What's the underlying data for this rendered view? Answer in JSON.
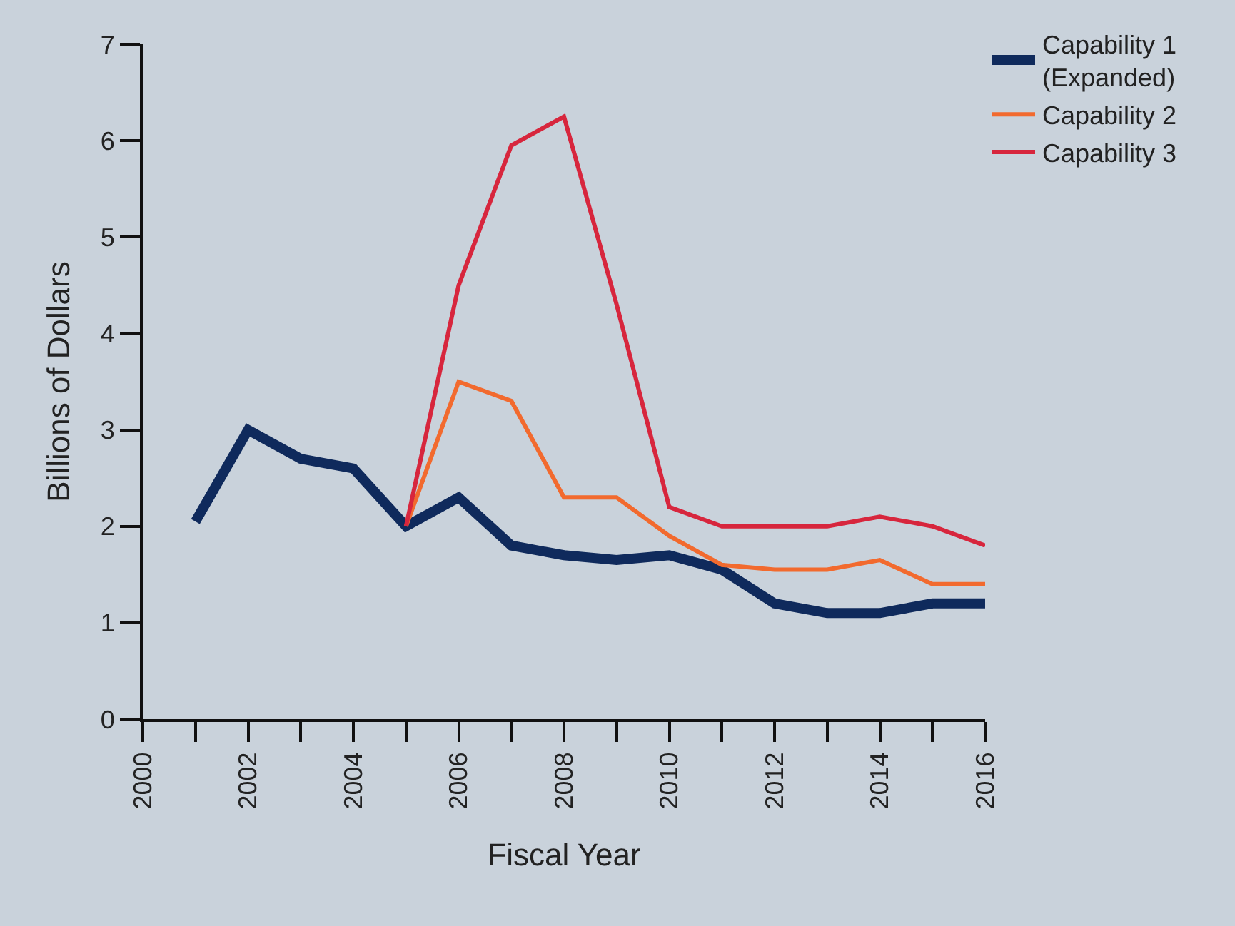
{
  "chart_data": {
    "type": "line",
    "xlabel": "Fiscal Year",
    "ylabel": "Billions of Dollars",
    "xlim": [
      2000,
      2016
    ],
    "ylim": [
      0,
      7
    ],
    "xticks": [
      2000,
      {
        "value": 2001,
        "label": null
      },
      2002,
      {
        "value": 2003,
        "label": null
      },
      2004,
      {
        "value": 2005,
        "label": null
      },
      2006,
      {
        "value": 2007,
        "label": null
      },
      2008,
      {
        "value": 2009,
        "label": null
      },
      2010,
      {
        "value": 2011,
        "label": null
      },
      2012,
      {
        "value": 2013,
        "label": null
      },
      2014,
      {
        "value": 2015,
        "label": null
      },
      2016
    ],
    "yticks": [
      0,
      1,
      2,
      3,
      4,
      5,
      6,
      7
    ],
    "grid": false,
    "legend": "top right",
    "marker": "none",
    "line_style": "solid",
    "series": [
      {
        "name": "Capability 1\n(Expanded)",
        "color": "#0f2a5c",
        "x": [
          2001,
          2002,
          2003,
          2004,
          2005,
          2006,
          2007,
          2008,
          2009,
          2010,
          2011,
          2012,
          2013,
          2014,
          2015,
          2016
        ],
        "values": [
          2.05,
          3.0,
          2.7,
          2.6,
          2.0,
          2.3,
          1.8,
          1.7,
          1.65,
          1.7,
          1.55,
          1.2,
          1.1,
          1.1,
          1.2,
          1.2
        ]
      },
      {
        "name": "Capability 2",
        "color": "#f26a2e",
        "x": [
          2005,
          2006,
          2007,
          2008,
          2009,
          2010,
          2011,
          2012,
          2013,
          2014,
          2015,
          2016
        ],
        "values": [
          2.0,
          3.5,
          3.3,
          2.3,
          2.3,
          1.9,
          1.6,
          1.55,
          1.55,
          1.65,
          1.4,
          1.4
        ]
      },
      {
        "name": "Capability 3",
        "color": "#d7263d",
        "x": [
          2005,
          2006,
          2007,
          2008,
          2009,
          2010,
          2011,
          2012,
          2013,
          2014,
          2015,
          2016
        ],
        "values": [
          2.0,
          4.5,
          5.95,
          6.25,
          4.3,
          2.2,
          2.0,
          2.0,
          2.0,
          2.1,
          2.0,
          1.8
        ]
      }
    ]
  }
}
